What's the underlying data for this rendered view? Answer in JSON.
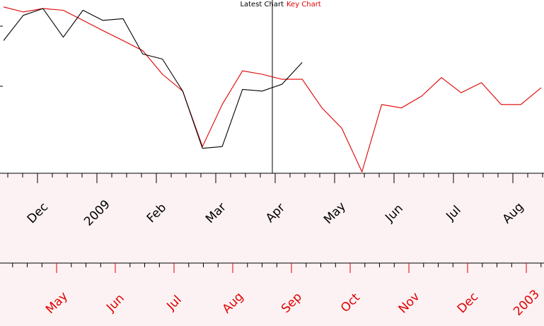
{
  "legend": {
    "latest_label": "Latest Chart",
    "key_label": "Key Chart",
    "latest_color": "#000000",
    "key_color": "#e00000"
  },
  "colors": {
    "axis_band_background": "#fdf2f3",
    "plot_background": "#ffffff"
  },
  "chart_data": {
    "type": "line",
    "title": "",
    "series": [
      {
        "name": "Latest Chart",
        "color": "#000000",
        "x": [
          0,
          0.33,
          0.66,
          1,
          1.33,
          1.66,
          2,
          2.33,
          2.66,
          3,
          3.33,
          3.66,
          4,
          4.33,
          4.66,
          5
        ],
        "y": [
          0.78,
          0.93,
          0.97,
          0.8,
          0.96,
          0.9,
          0.91,
          0.7,
          0.67,
          0.48,
          0.14,
          0.15,
          0.49,
          0.48,
          0.52,
          0.65
        ]
      },
      {
        "name": "Key Chart",
        "color": "#e00000",
        "x": [
          0,
          0.33,
          0.66,
          1,
          1.33,
          1.66,
          2,
          2.33,
          2.66,
          3,
          3.33,
          3.66,
          4,
          4.33,
          4.66,
          5,
          5.33,
          5.66,
          6,
          6.33,
          6.66,
          7,
          7.33,
          7.66,
          8,
          8.33,
          8.66,
          9
        ],
        "y": [
          0.98,
          0.95,
          0.97,
          0.96,
          0.9,
          0.84,
          0.78,
          0.72,
          0.58,
          0.48,
          0.15,
          0.4,
          0.6,
          0.58,
          0.55,
          0.55,
          0.38,
          0.26,
          0.0,
          0.4,
          0.38,
          0.45,
          0.56,
          0.47,
          0.53,
          0.4,
          0.4,
          0.5
        ]
      }
    ],
    "axes": [
      {
        "color": "#000000",
        "tick_labels": [
          "Dec",
          "2009",
          "Feb",
          "Mar",
          "Apr",
          "May",
          "Jun",
          "Jul",
          "Aug"
        ]
      },
      {
        "color": "#e00000",
        "tick_labels": [
          "May",
          "Jun",
          "Jul",
          "Aug",
          "Sep",
          "Oct",
          "Nov",
          "Dec",
          "2003"
        ]
      }
    ],
    "grid": false
  }
}
